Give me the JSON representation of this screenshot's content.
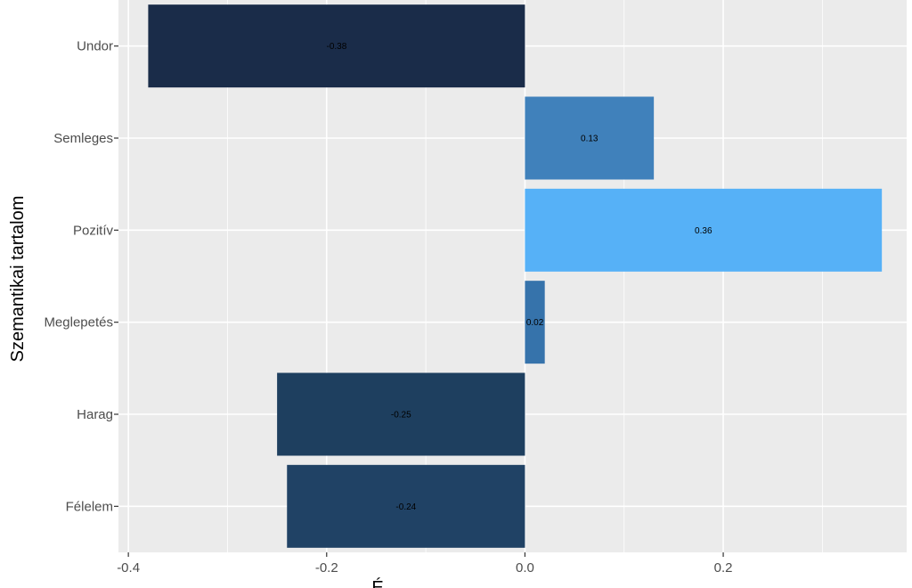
{
  "chart_data": {
    "type": "bar",
    "orientation": "horizontal",
    "categories": [
      "Undor",
      "Semleges",
      "Pozitív",
      "Meglepetés",
      "Harag",
      "Félelem"
    ],
    "values": [
      -0.38,
      0.13,
      0.36,
      0.02,
      -0.25,
      -0.24
    ],
    "bar_label_texts": [
      "-0.38",
      "0.13",
      "0.36",
      "0.02",
      "-0.25",
      "-0.24"
    ],
    "bar_colors": [
      "#1a2c49",
      "#4081bb",
      "#56b1f7",
      "#3673ab",
      "#1e3f5f",
      "#204265"
    ],
    "title": "",
    "xlabel": "É",
    "ylabel": "Szemantikai tartalom",
    "xlim": [
      -0.41,
      0.385
    ],
    "x_ticks": [
      -0.4,
      -0.2,
      0.0,
      0.2
    ],
    "x_tick_labels": [
      "-0.4",
      "-0.2",
      "0.0",
      "0.2"
    ],
    "grid": true,
    "legend": "none",
    "panel_background": "#ebebeb",
    "grid_color": "#ffffff"
  }
}
